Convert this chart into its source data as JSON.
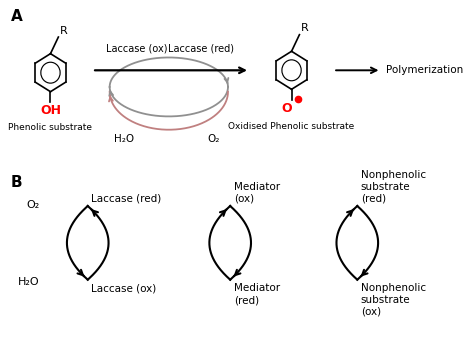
{
  "title_A": "A",
  "title_B": "B",
  "phenolic_label": "Phenolic substrate",
  "oxidised_label": "Oxidised Phenolic substrate",
  "polymerization_label": "Polymerization",
  "laccase_ox": "Laccase (ox)",
  "laccase_red": "Laccase (red)",
  "h2o": "H₂O",
  "o2": "O₂",
  "mediator_ox": "Mediator\n(ox)",
  "mediator_red": "Mediator\n(red)",
  "nonphenolic_red": "Nonphenolic\nsubstrate\n(red)",
  "nonphenolic_ox": "Nonphenolic\nsubstrate\n(ox)",
  "laccase_ox_B": "Laccase (ox)",
  "laccase_red_B": "Laccase (red)",
  "o2_B": "O₂",
  "h2o_B": "H₂O",
  "oh_color": "#ff0000",
  "o_dot_color": "#ff0000",
  "background": "#ffffff",
  "arrow_color": "#000000",
  "cycle_arrow_color": "#909090",
  "pink_arrow_color": "#c08080"
}
